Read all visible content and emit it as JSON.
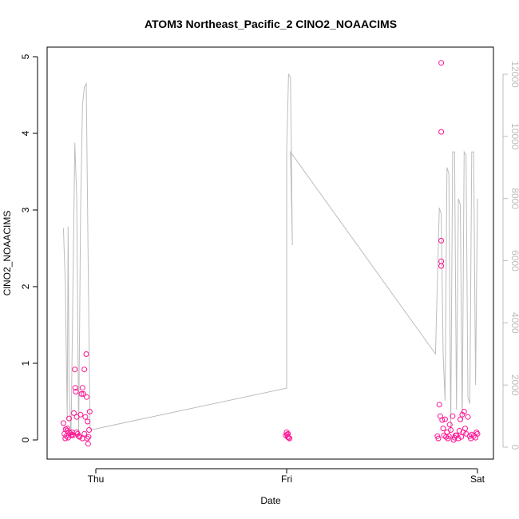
{
  "chart_data": {
    "type": "scatter",
    "title": "ATOM3 Northeast_Pacific_2 ClNO2_NOAACIMS",
    "xlabel": "Date",
    "ylabel": "ClNO2_NOAACIMS",
    "x_ticks": [
      "Thu",
      "Fri",
      "Sat"
    ],
    "ylim": [
      0,
      5
    ],
    "y_ticks": [
      "0",
      "1",
      "2",
      "3",
      "4",
      "5"
    ],
    "y2lim": [
      0,
      12000
    ],
    "y2_ticks": [
      "0",
      "2000",
      "4000",
      "6000",
      "8000",
      "10000",
      "12000"
    ],
    "point_color": "#ff1493",
    "line_color": "#bdbdbd",
    "series": [
      {
        "type": "scatter",
        "axis": "left",
        "points": [
          [
            -0.17,
            0.22
          ],
          [
            -0.165,
            0.08
          ],
          [
            -0.16,
            0.02
          ],
          [
            -0.158,
            0.14
          ],
          [
            -0.155,
            0.05
          ],
          [
            -0.15,
            0.12
          ],
          [
            -0.145,
            0.03
          ],
          [
            -0.14,
            0.28
          ],
          [
            -0.135,
            0.09
          ],
          [
            -0.13,
            0.06
          ],
          [
            -0.125,
            0.1
          ],
          [
            -0.12,
            0.06
          ],
          [
            -0.115,
            0.35
          ],
          [
            -0.11,
            0.92
          ],
          [
            -0.108,
            0.68
          ],
          [
            -0.105,
            0.63
          ],
          [
            -0.1,
            0.3
          ],
          [
            -0.095,
            0.08
          ],
          [
            -0.09,
            0.05
          ],
          [
            -0.085,
            0.04
          ],
          [
            -0.08,
            0.33
          ],
          [
            -0.075,
            0.6
          ],
          [
            -0.07,
            0.68
          ],
          [
            -0.065,
            0.6
          ],
          [
            -0.06,
            0.92
          ],
          [
            -0.055,
            0.3
          ],
          [
            -0.05,
            1.12
          ],
          [
            -0.048,
            0.56
          ],
          [
            -0.045,
            0.02
          ],
          [
            -0.043,
            0.24
          ],
          [
            -0.04,
            -0.05
          ],
          [
            -0.038,
            0.04
          ],
          [
            -0.035,
            0.13
          ],
          [
            -0.032,
            0.37
          ],
          [
            -0.07,
            0.02
          ],
          [
            -0.1,
            0.1
          ],
          [
            -0.125,
            0.07
          ],
          [
            -0.15,
            0.15
          ],
          [
            -0.09,
            0.05
          ],
          [
            -0.06,
            0.08
          ],
          [
            0.995,
            0.06
          ],
          [
            1.0,
            0.1
          ],
          [
            1.005,
            0.04
          ],
          [
            1.01,
            0.03
          ],
          [
            1.015,
            0.02
          ],
          [
            1.007,
            0.08
          ],
          [
            1.002,
            0.07
          ],
          [
            1.79,
            0.05
          ],
          [
            1.795,
            0.02
          ],
          [
            1.8,
            0.46
          ],
          [
            1.805,
            0.31
          ],
          [
            1.81,
            2.6
          ],
          [
            1.81,
            2.33
          ],
          [
            1.81,
            2.27
          ],
          [
            1.81,
            4.92
          ],
          [
            1.81,
            4.02
          ],
          [
            1.815,
            0.26
          ],
          [
            1.82,
            0.15
          ],
          [
            1.825,
            0.06
          ],
          [
            1.83,
            0.27
          ],
          [
            1.835,
            0.04
          ],
          [
            1.84,
            0.1
          ],
          [
            1.85,
            0.05
          ],
          [
            1.86,
            0.13
          ],
          [
            1.87,
            0.31
          ],
          [
            1.88,
            0.03
          ],
          [
            1.89,
            0.06
          ],
          [
            1.9,
            0.02
          ],
          [
            1.91,
            0.27
          ],
          [
            1.92,
            0.33
          ],
          [
            1.93,
            0.37
          ],
          [
            1.94,
            0.08
          ],
          [
            1.95,
            0.3
          ],
          [
            1.96,
            0.05
          ],
          [
            1.97,
            0.07
          ],
          [
            1.98,
            0.05
          ],
          [
            1.99,
            0.03
          ],
          [
            2.0,
            0.08
          ],
          [
            1.845,
            0.02
          ],
          [
            1.875,
            0.0
          ],
          [
            1.905,
            0.12
          ],
          [
            1.935,
            0.15
          ],
          [
            1.965,
            0.02
          ],
          [
            1.995,
            0.1
          ],
          [
            1.855,
            0.2
          ],
          [
            1.885,
            0.06
          ],
          [
            1.915,
            0.04
          ],
          [
            1.925,
            0.1
          ]
        ]
      },
      {
        "type": "line",
        "axis": "right",
        "points": [
          [
            -0.17,
            7050
          ],
          [
            -0.16,
            5300
          ],
          [
            -0.15,
            900
          ],
          [
            -0.145,
            7100
          ],
          [
            -0.14,
            2000
          ],
          [
            -0.13,
            300
          ],
          [
            -0.12,
            5000
          ],
          [
            -0.11,
            9800
          ],
          [
            -0.1,
            8000
          ],
          [
            -0.09,
            300
          ],
          [
            -0.08,
            7500
          ],
          [
            -0.07,
            11000
          ],
          [
            -0.06,
            11600
          ],
          [
            -0.05,
            11700
          ],
          [
            -0.04,
            6000
          ],
          [
            -0.03,
            550
          ],
          [
            1.0,
            1900
          ],
          [
            1.0,
            9500
          ],
          [
            1.01,
            12000
          ],
          [
            1.02,
            11900
          ],
          [
            1.03,
            6500
          ],
          [
            1.02,
            9500
          ],
          [
            1.78,
            3000
          ],
          [
            1.8,
            7700
          ],
          [
            1.81,
            7500
          ],
          [
            1.82,
            3000
          ],
          [
            1.83,
            1500
          ],
          [
            1.84,
            9000
          ],
          [
            1.85,
            8800
          ],
          [
            1.86,
            500
          ],
          [
            1.87,
            9500
          ],
          [
            1.88,
            9500
          ],
          [
            1.89,
            1200
          ],
          [
            1.9,
            8000
          ],
          [
            1.91,
            7800
          ],
          [
            1.92,
            800
          ],
          [
            1.93,
            9500
          ],
          [
            1.94,
            9400
          ],
          [
            1.95,
            1600
          ],
          [
            1.96,
            1400
          ],
          [
            1.97,
            9500
          ],
          [
            1.98,
            9500
          ],
          [
            1.99,
            2000
          ],
          [
            2.0,
            8000
          ]
        ]
      }
    ]
  }
}
